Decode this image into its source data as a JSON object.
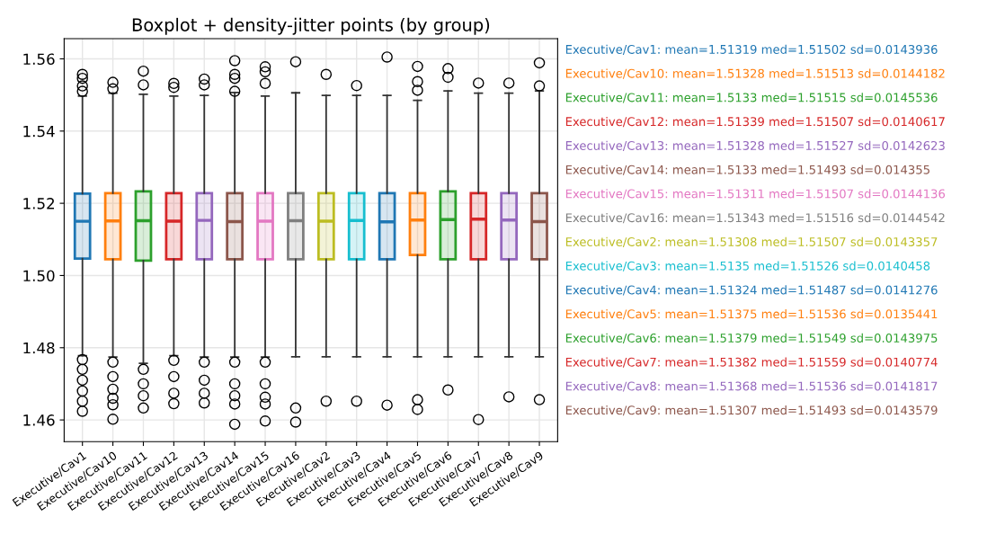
{
  "chart_data": {
    "type": "box",
    "title": "Boxplot + density-jitter points (by group)",
    "categories": [
      "Executive/Cav1",
      "Executive/Cav10",
      "Executive/Cav11",
      "Executive/Cav12",
      "Executive/Cav13",
      "Executive/Cav14",
      "Executive/Cav15",
      "Executive/Cav16",
      "Executive/Cav2",
      "Executive/Cav3",
      "Executive/Cav4",
      "Executive/Cav5",
      "Executive/Cav6",
      "Executive/Cav7",
      "Executive/Cav8",
      "Executive/Cav9"
    ],
    "colors": [
      "#1f77b4",
      "#ff7f0e",
      "#2ca02c",
      "#d62728",
      "#9467bd",
      "#8c564b",
      "#e377c2",
      "#7f7f7f",
      "#bcbd22",
      "#17becf",
      "#1f77b4",
      "#ff7f0e",
      "#2ca02c",
      "#d62728",
      "#9467bd",
      "#8c564b"
    ],
    "boxes": [
      {
        "low": 1.4778,
        "q1": 1.5047,
        "median": 1.51502,
        "q3": 1.5227,
        "high": 1.5497,
        "outliers": [
          1.5557,
          1.5546,
          1.5525,
          1.551,
          1.4767,
          1.474,
          1.471,
          1.468,
          1.4652,
          1.4624
        ]
      },
      {
        "low": 1.4774,
        "q1": 1.5045,
        "median": 1.51513,
        "q3": 1.5228,
        "high": 1.5505,
        "outliers": [
          1.5535,
          1.5517,
          1.476,
          1.472,
          1.4685,
          1.466,
          1.4642,
          1.4602
        ]
      },
      {
        "low": 1.4757,
        "q1": 1.5041,
        "median": 1.51515,
        "q3": 1.5233,
        "high": 1.5502,
        "outliers": [
          1.5566,
          1.5528,
          1.474,
          1.47,
          1.4667,
          1.4633
        ]
      },
      {
        "low": 1.4778,
        "q1": 1.5045,
        "median": 1.51507,
        "q3": 1.5228,
        "high": 1.5497,
        "outliers": [
          1.5532,
          1.5521,
          1.4765,
          1.472,
          1.4674,
          1.4645
        ]
      },
      {
        "low": 1.4774,
        "q1": 1.5045,
        "median": 1.51527,
        "q3": 1.5228,
        "high": 1.5499,
        "outliers": [
          1.5544,
          1.5528,
          1.476,
          1.471,
          1.4674,
          1.4647
        ]
      },
      {
        "low": 1.4774,
        "q1": 1.5045,
        "median": 1.51493,
        "q3": 1.5228,
        "high": 1.5507,
        "outliers": [
          1.5595,
          1.5557,
          1.5546,
          1.551,
          1.476,
          1.47,
          1.4667,
          1.4644,
          1.4588
        ]
      },
      {
        "low": 1.4774,
        "q1": 1.5045,
        "median": 1.51507,
        "q3": 1.5228,
        "high": 1.5497,
        "outliers": [
          1.5578,
          1.5564,
          1.5532,
          1.476,
          1.47,
          1.4663,
          1.4644,
          1.4597
        ]
      },
      {
        "low": 1.4775,
        "q1": 1.5045,
        "median": 1.51516,
        "q3": 1.5228,
        "high": 1.5506,
        "outliers": [
          1.5592,
          1.4633,
          1.4594
        ]
      },
      {
        "low": 1.4775,
        "q1": 1.5045,
        "median": 1.51507,
        "q3": 1.5228,
        "high": 1.5499,
        "outliers": [
          1.5557,
          1.4652
        ]
      },
      {
        "low": 1.4775,
        "q1": 1.5045,
        "median": 1.51526,
        "q3": 1.5228,
        "high": 1.5499,
        "outliers": [
          1.5526,
          1.4652
        ]
      },
      {
        "low": 1.4775,
        "q1": 1.5045,
        "median": 1.51487,
        "q3": 1.5228,
        "high": 1.5499,
        "outliers": [
          1.5605,
          1.4641
        ]
      },
      {
        "low": 1.4775,
        "q1": 1.5057,
        "median": 1.51536,
        "q3": 1.5228,
        "high": 1.5485,
        "outliers": [
          1.5579,
          1.5537,
          1.5513,
          1.4656,
          1.4629
        ]
      },
      {
        "low": 1.4775,
        "q1": 1.5045,
        "median": 1.51549,
        "q3": 1.5233,
        "high": 1.5511,
        "outliers": [
          1.5573,
          1.5549,
          1.4683
        ]
      },
      {
        "low": 1.4775,
        "q1": 1.5045,
        "median": 1.51559,
        "q3": 1.5228,
        "high": 1.5505,
        "outliers": [
          1.5533,
          1.4601
        ]
      },
      {
        "low": 1.4775,
        "q1": 1.5045,
        "median": 1.51536,
        "q3": 1.5228,
        "high": 1.5505,
        "outliers": [
          1.5533,
          1.4664
        ]
      },
      {
        "low": 1.4775,
        "q1": 1.5045,
        "median": 1.51493,
        "q3": 1.5228,
        "high": 1.5511,
        "outliers": [
          1.5589,
          1.5525,
          1.4656
        ]
      }
    ],
    "annotations": [
      "Executive/Cav1: mean=1.51319 med=1.51502 sd=0.0143936",
      "Executive/Cav10: mean=1.51328 med=1.51513 sd=0.0144182",
      "Executive/Cav11: mean=1.5133 med=1.51515 sd=0.0145536",
      "Executive/Cav12: mean=1.51339 med=1.51507 sd=0.0140617",
      "Executive/Cav13: mean=1.51328 med=1.51527 sd=0.0142623",
      "Executive/Cav14: mean=1.5133 med=1.51493 sd=0.014355",
      "Executive/Cav15: mean=1.51311 med=1.51507 sd=0.0144136",
      "Executive/Cav16: mean=1.51343 med=1.51516 sd=0.0144542",
      "Executive/Cav2: mean=1.51308 med=1.51507 sd=0.0143357",
      "Executive/Cav3: mean=1.5135 med=1.51526 sd=0.0140458",
      "Executive/Cav4: mean=1.51324 med=1.51487 sd=0.0141276",
      "Executive/Cav5: mean=1.51375 med=1.51536 sd=0.0135441",
      "Executive/Cav6: mean=1.51379 med=1.51549 sd=0.0143975",
      "Executive/Cav7: mean=1.51382 med=1.51559 sd=0.0140774",
      "Executive/Cav8: mean=1.51368 med=1.51536 sd=0.0141817",
      "Executive/Cav9: mean=1.51307 med=1.51493 sd=0.0143579"
    ],
    "ylim": [
      1.454,
      1.5656
    ],
    "yticks": [
      1.46,
      1.48,
      {
        "value": 1.5,
        "label": "1.50"
      },
      1.52,
      1.54,
      1.56
    ],
    "grid": true
  }
}
